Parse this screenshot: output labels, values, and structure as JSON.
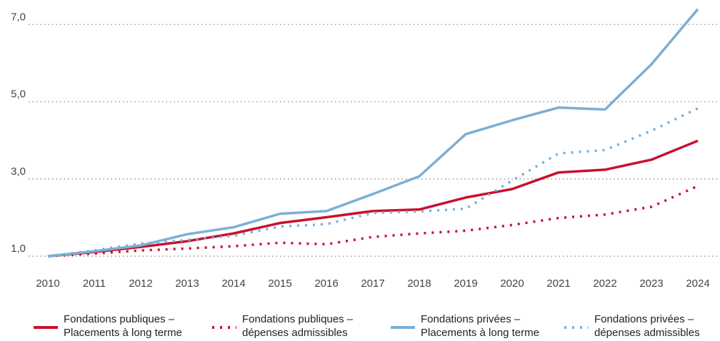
{
  "chart_data": {
    "type": "line",
    "categories": [
      "2010",
      "2011",
      "2012",
      "2013",
      "2014",
      "2015",
      "2016",
      "2017",
      "2018",
      "2019",
      "2020",
      "2021",
      "2022",
      "2023",
      "2024"
    ],
    "series": [
      {
        "name": "Fondations publiques –\nPlacements à long terme",
        "color": "#c8102e",
        "dash": false,
        "values": [
          1.0,
          1.11,
          1.24,
          1.39,
          1.59,
          1.86,
          2.01,
          2.17,
          2.21,
          2.52,
          2.74,
          3.17,
          3.24,
          3.5,
          3.99
        ]
      },
      {
        "name": "Fondations publiques –\ndépenses admissibles",
        "color": "#c8102e",
        "dash": true,
        "values": [
          1.0,
          1.07,
          1.15,
          1.2,
          1.26,
          1.35,
          1.31,
          1.5,
          1.59,
          1.66,
          1.81,
          1.99,
          2.08,
          2.28,
          2.82
        ]
      },
      {
        "name": "Fondations privées –\nPlacements à long terme",
        "color": "#7bafd4",
        "dash": false,
        "values": [
          1.0,
          1.13,
          1.28,
          1.57,
          1.75,
          2.1,
          2.17,
          2.61,
          3.07,
          4.16,
          4.52,
          4.85,
          4.8,
          5.97,
          7.4
        ]
      },
      {
        "name": "Fondations privées –\ndépenses admissibles",
        "color": "#7bafd4",
        "dash": true,
        "values": [
          1.0,
          1.15,
          1.33,
          1.42,
          1.53,
          1.77,
          1.83,
          2.12,
          2.16,
          2.23,
          2.96,
          3.66,
          3.75,
          4.25,
          4.83
        ]
      }
    ],
    "ylim": [
      0.8,
      7.45
    ],
    "yticks": [
      {
        "value": 1,
        "label": "1,0"
      },
      {
        "value": 3,
        "label": "3,0"
      },
      {
        "value": 5,
        "label": "5,0"
      },
      {
        "value": 7,
        "label": "7,0"
      }
    ],
    "grid": true
  }
}
